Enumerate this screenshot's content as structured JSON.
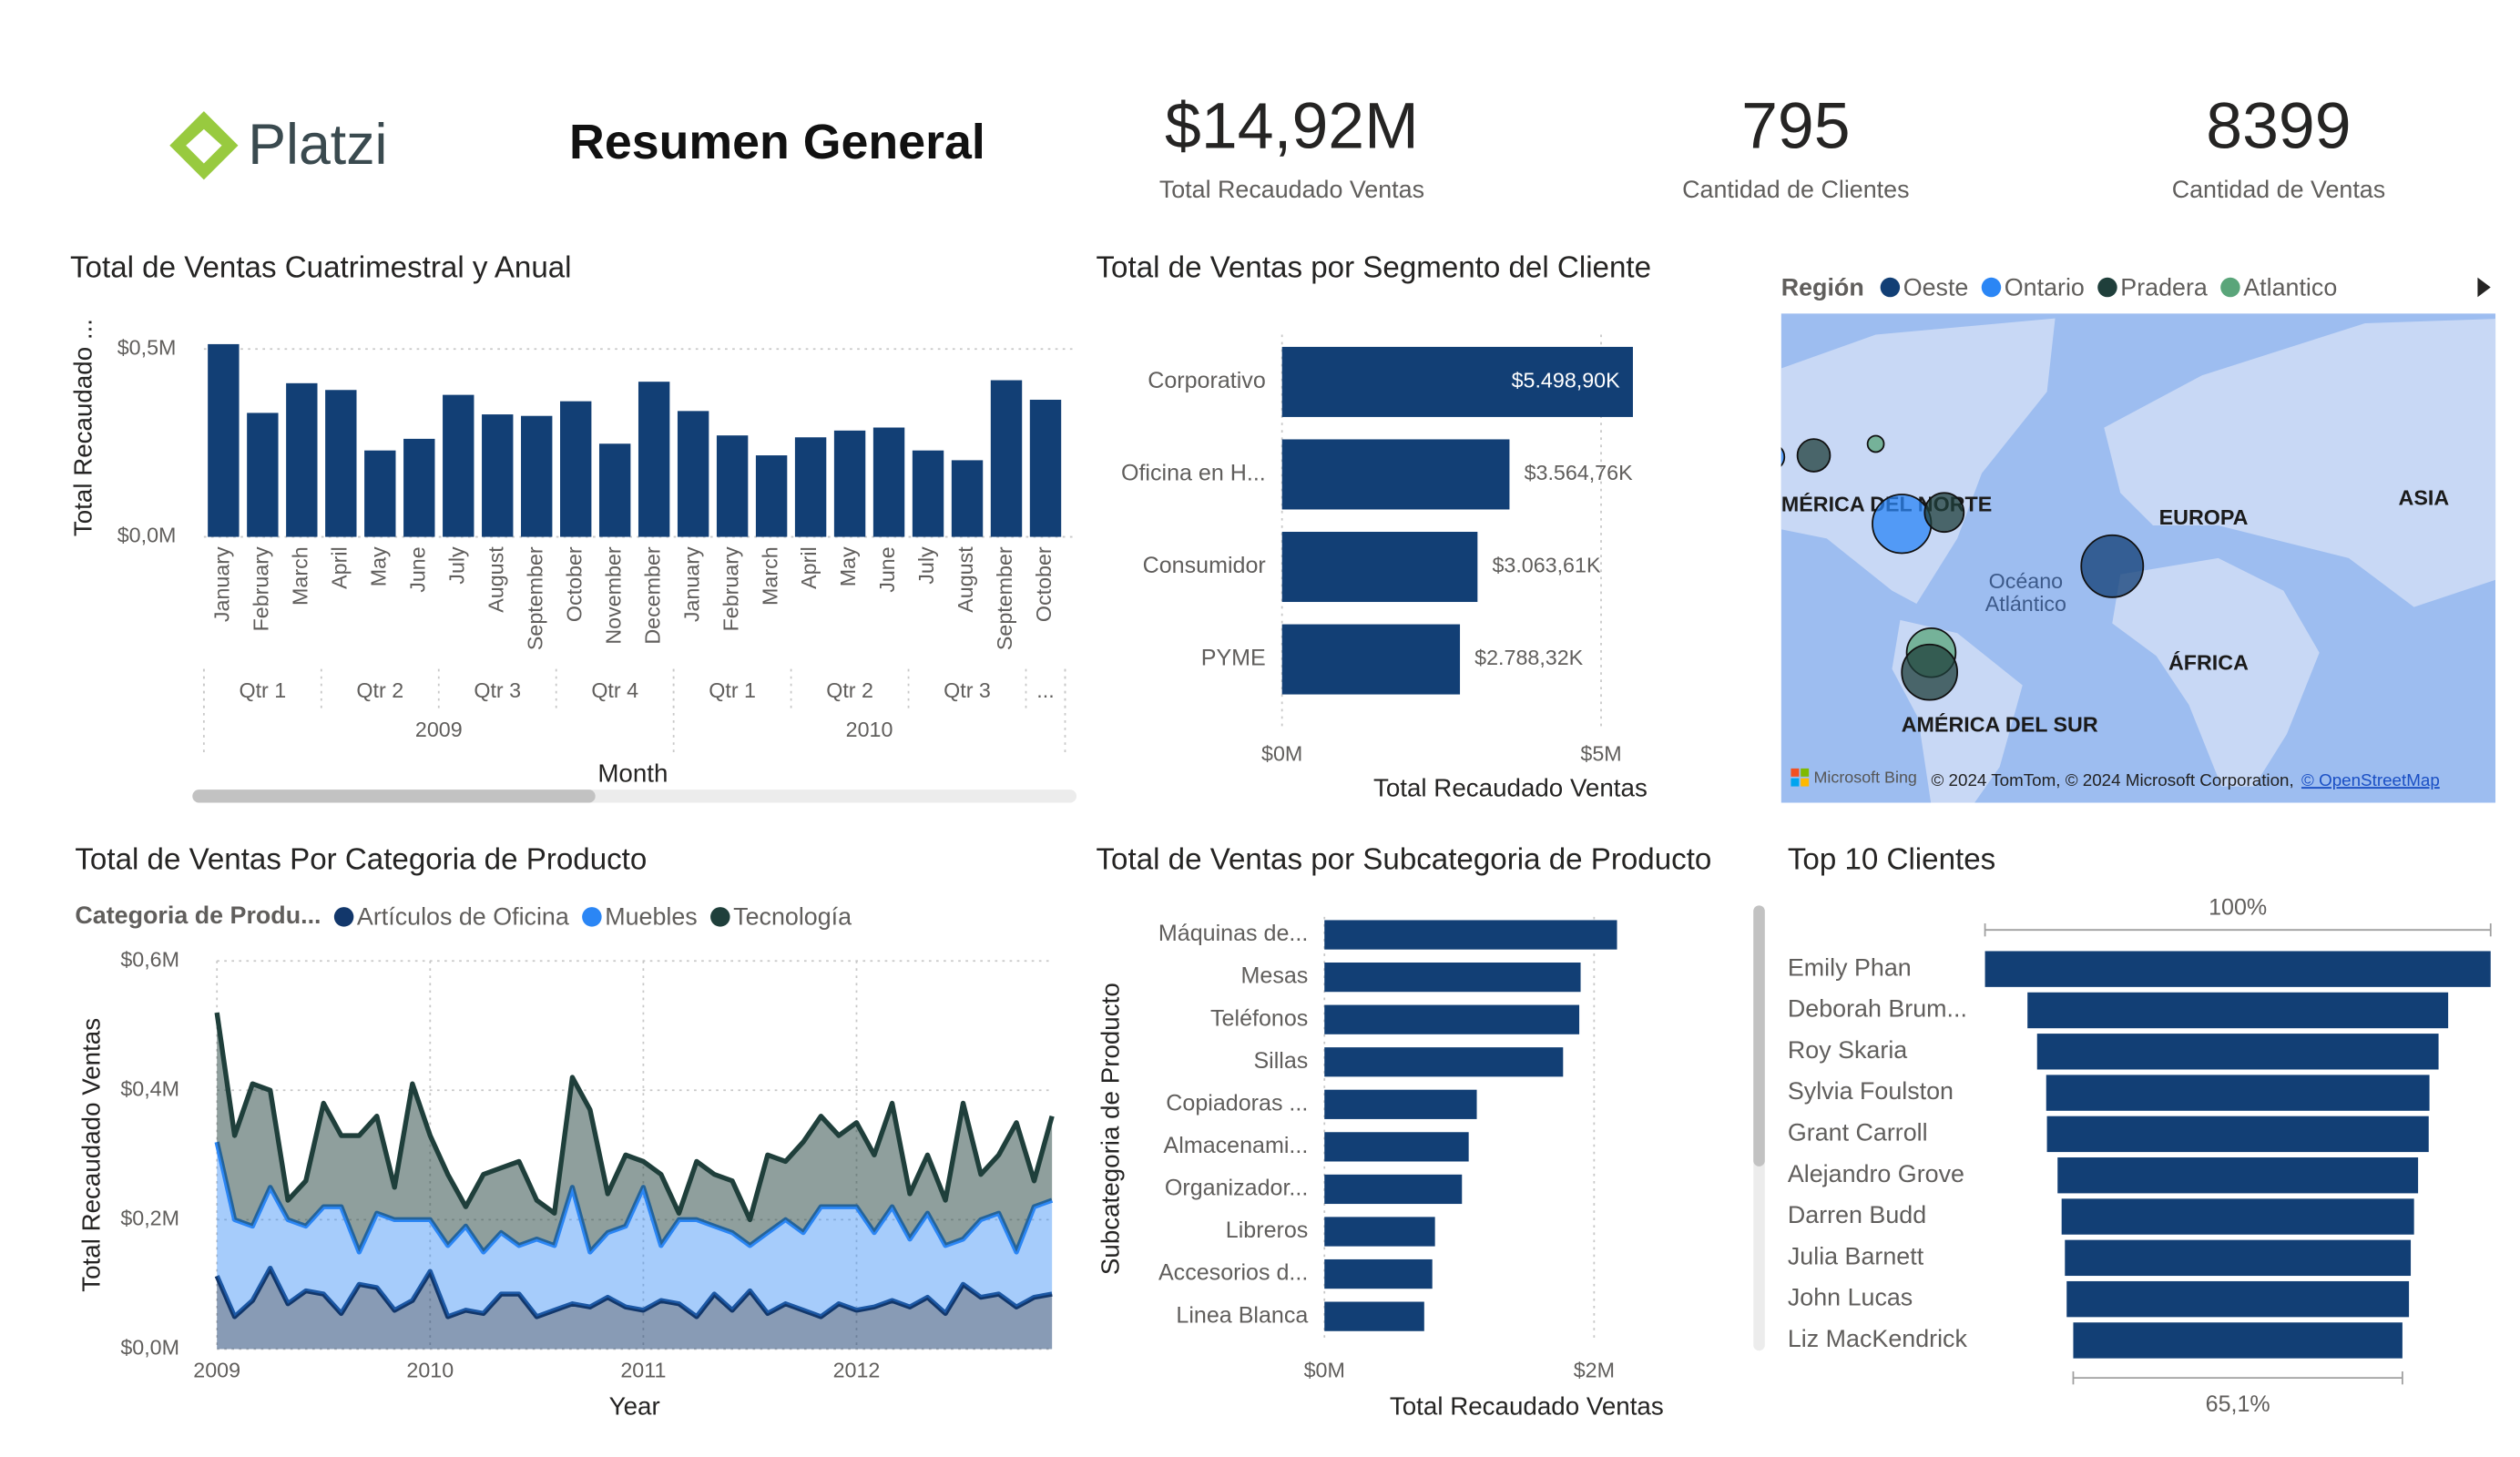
{
  "header": {
    "logo": "Platzi",
    "title": "Resumen General"
  },
  "kpis": [
    {
      "value": "$14,92M",
      "label": "Total Recaudado Ventas"
    },
    {
      "value": 795,
      "label": "Cantidad de Clientes"
    },
    {
      "value": 8399,
      "label": "Cantidad de Ventas"
    }
  ],
  "map": {
    "legend_title": "Región",
    "legend": [
      {
        "name": "Oeste",
        "color": "#123f75"
      },
      {
        "name": "Ontario",
        "color": "#2b86f5"
      },
      {
        "name": "Pradera",
        "color": "#1f3f3b"
      },
      {
        "name": "Atlantico",
        "color": "#5aa57a"
      }
    ],
    "labels": {
      "north_america": "AMÉRICA DEL NORTE",
      "europe": "EUROPA",
      "asia": "ASIA",
      "atlantic": [
        "Océano",
        "Atlántico"
      ],
      "africa": "ÁFRICA",
      "south_america": "AMÉRICA DEL SUR"
    },
    "attribution": {
      "bing": "Microsoft Bing",
      "copyright": "© 2024 TomTom, © 2024 Microsoft Corporation,",
      "osm": "© OpenStreetMap"
    }
  },
  "chart_data": [
    {
      "type": "bar",
      "title": "Total de Ventas Cuatrimestral y Anual",
      "y_label": "Total Recaudado ...",
      "x_label": "Month",
      "categories": [
        "January",
        "February",
        "March",
        "April",
        "May",
        "June",
        "July",
        "August",
        "September",
        "October",
        "November",
        "December",
        "January",
        "February",
        "March",
        "April",
        "May",
        "June",
        "July",
        "August",
        "September",
        "October"
      ],
      "quarters": [
        "Qtr 1",
        "Qtr 1",
        "Qtr 1",
        "Qtr 2",
        "Qtr 2",
        "Qtr 2",
        "Qtr 3",
        "Qtr 3",
        "Qtr 3",
        "Qtr 4",
        "Qtr 4",
        "Qtr 4",
        "Qtr 1",
        "Qtr 1",
        "Qtr 1",
        "Qtr 2",
        "Qtr 2",
        "Qtr 2",
        "Qtr 3",
        "Qtr 3",
        "Qtr 3",
        "..."
      ],
      "years": [
        "2009",
        "2009",
        "2009",
        "2009",
        "2009",
        "2009",
        "2009",
        "2009",
        "2009",
        "2009",
        "2009",
        "2009",
        "2010",
        "2010",
        "2010",
        "2010",
        "2010",
        "2010",
        "2010",
        "2010",
        "2010",
        "2010"
      ],
      "values": [
        513000,
        330000,
        409000,
        391000,
        230000,
        261000,
        378000,
        326000,
        322000,
        361000,
        248000,
        413000,
        335000,
        270000,
        217000,
        265000,
        283000,
        291000,
        230000,
        204000,
        417000,
        365000
      ],
      "color": "#123f75",
      "ylim": [
        0,
        560000
      ],
      "yticks": [
        {
          "value": 0,
          "label": "$0,0M"
        },
        {
          "value": 500000,
          "label": "$0,5M"
        }
      ],
      "grid": true
    },
    {
      "type": "bar",
      "orientation": "horizontal",
      "title": "Total de Ventas por Segmento del Cliente",
      "x_label": "Total Recaudado Ventas",
      "categories": [
        "Corporativo",
        "Oficina en H...",
        "Consumidor",
        "PYME"
      ],
      "values": [
        5498900,
        3564760,
        3063610,
        2788320
      ],
      "value_labels": [
        "$5.498,90K",
        "$3.564,76K",
        "$3.063,61K",
        "$2.788,32K"
      ],
      "color": "#123f75",
      "xlim": [
        0,
        5700000
      ],
      "xticks": [
        {
          "value": 0,
          "label": "$0M"
        },
        {
          "value": 5000000,
          "label": "$5M"
        }
      ],
      "grid": true
    },
    {
      "type": "area",
      "stacked": true,
      "title": "Total de Ventas Por Categoria de Producto",
      "legend_title": "Categoria de Produ...",
      "y_label": "Total Recaudado Ventas",
      "x_label": "Year",
      "x": [
        2009,
        2009.083,
        2009.167,
        2009.25,
        2009.333,
        2009.417,
        2009.5,
        2009.583,
        2009.667,
        2009.75,
        2009.833,
        2009.917,
        2010,
        2010.083,
        2010.167,
        2010.25,
        2010.333,
        2010.417,
        2010.5,
        2010.583,
        2010.667,
        2010.75,
        2010.833,
        2010.917,
        2011,
        2011.083,
        2011.167,
        2011.25,
        2011.333,
        2011.417,
        2011.5,
        2011.583,
        2011.667,
        2011.75,
        2011.833,
        2011.917,
        2012,
        2012.083,
        2012.167,
        2012.25,
        2012.333,
        2012.417,
        2012.5,
        2012.583,
        2012.667,
        2012.75,
        2012.833,
        2012.917
      ],
      "series": [
        {
          "name": "Artículos de Oficina",
          "color": "#12376b",
          "values": [
            113000,
            50000,
            75000,
            125000,
            70000,
            90000,
            85000,
            55000,
            100000,
            95000,
            60000,
            75000,
            120000,
            50000,
            60000,
            55000,
            85000,
            85000,
            50000,
            60000,
            70000,
            65000,
            80000,
            65000,
            60000,
            75000,
            70000,
            50000,
            85000,
            60000,
            90000,
            55000,
            70000,
            60000,
            50000,
            70000,
            60000,
            65000,
            75000,
            65000,
            80000,
            55000,
            100000,
            80000,
            85000,
            65000,
            80000,
            85000
          ]
        },
        {
          "name": "Muebles",
          "color": "#2b86f5",
          "values": [
            207000,
            150000,
            115000,
            125000,
            130000,
            100000,
            135000,
            165000,
            50000,
            115000,
            140000,
            125000,
            80000,
            110000,
            130000,
            95000,
            95000,
            75000,
            120000,
            100000,
            180000,
            85000,
            100000,
            125000,
            190000,
            85000,
            130000,
            150000,
            105000,
            120000,
            70000,
            125000,
            130000,
            120000,
            170000,
            150000,
            160000,
            115000,
            145000,
            105000,
            130000,
            105000,
            70000,
            120000,
            125000,
            85000,
            140000,
            145000
          ]
        },
        {
          "name": "Tecnología",
          "color": "#1f3f3b",
          "values": [
            200000,
            130000,
            220000,
            150000,
            30000,
            70000,
            160000,
            110000,
            180000,
            150000,
            50000,
            210000,
            130000,
            110000,
            30000,
            120000,
            100000,
            130000,
            60000,
            50000,
            170000,
            220000,
            60000,
            110000,
            40000,
            110000,
            10000,
            90000,
            80000,
            80000,
            40000,
            120000,
            90000,
            140000,
            140000,
            110000,
            130000,
            120000,
            160000,
            70000,
            90000,
            70000,
            210000,
            70000,
            90000,
            200000,
            40000,
            130000
          ]
        }
      ],
      "xlim": [
        2009,
        2012.917
      ],
      "xticks": [
        2009,
        2010,
        2011,
        2012
      ],
      "ylim": [
        0,
        600000
      ],
      "yticks": [
        {
          "value": 0,
          "label": "$0,0M"
        },
        {
          "value": 200000,
          "label": "$0,2M"
        },
        {
          "value": 400000,
          "label": "$0,4M"
        },
        {
          "value": 600000,
          "label": "$0,6M"
        }
      ],
      "grid": true
    },
    {
      "type": "bar",
      "orientation": "horizontal",
      "title": "Total de Ventas por Subcategoria de Producto",
      "x_label": "Total Recaudado Ventas",
      "y_label": "Subcategoria de Producto",
      "categories": [
        "Máquinas de...",
        "Mesas",
        "Teléfonos",
        "Sillas",
        "Copiadoras ...",
        "Almacenami...",
        "Organizador...",
        "Libreros",
        "Accesorios d...",
        "Linea Blanca"
      ],
      "values": [
        2170000,
        1900000,
        1890000,
        1770000,
        1130000,
        1070000,
        1020000,
        820000,
        800000,
        740000
      ],
      "color": "#123f75",
      "xlim": [
        0,
        2250000
      ],
      "xticks": [
        {
          "value": 0,
          "label": "$0M"
        },
        {
          "value": 2000000,
          "label": "$2M"
        }
      ],
      "grid": true
    },
    {
      "type": "funnel",
      "title": "Top 10 Clientes",
      "categories": [
        "Emily Phan",
        "Deborah Brum...",
        "Roy Skaria",
        "Sylvia Foulston",
        "Grant Carroll",
        "Alejandro Grove",
        "Darren Budd",
        "Julia Barnett",
        "John Lucas",
        "Liz MacKendrick"
      ],
      "values": [
        100,
        83.2,
        79.4,
        75.8,
        75.5,
        71.3,
        69.7,
        68.4,
        67.7,
        65.1
      ],
      "value_labels": [
        "100%",
        null,
        null,
        null,
        null,
        null,
        null,
        null,
        null,
        "65,1%"
      ],
      "color": "#123f75"
    }
  ]
}
